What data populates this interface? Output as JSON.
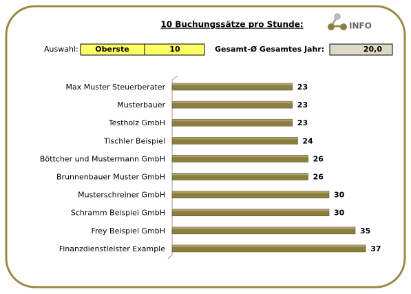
{
  "header": {
    "title": "10 Buchungssätze pro Stunde:",
    "info": "INFO",
    "selection_label": "Auswahl:",
    "selection": "Oberste",
    "count": "10",
    "average_label": "Gesamt-Ø Gesamtes Jahr:",
    "average": "20,0"
  },
  "chart_data": {
    "type": "bar",
    "orientation": "horizontal",
    "categories": [
      "Max Muster Steuerberater",
      "Musterbauer",
      "Testholz GmbH",
      "Tischler Beispiel",
      "Böttcher und Mustermann GmbH",
      "Brunnenbauer Muster GmbH",
      "Musterschreiner GmbH",
      "Schramm Beispiel GmbH",
      "Frey Beispiel GmbH",
      "Finanzdienstleister Example"
    ],
    "values": [
      23,
      23,
      23,
      24,
      26,
      26,
      30,
      30,
      35,
      37
    ],
    "color": "#8c7e3c",
    "xlim": [
      0,
      40
    ]
  }
}
